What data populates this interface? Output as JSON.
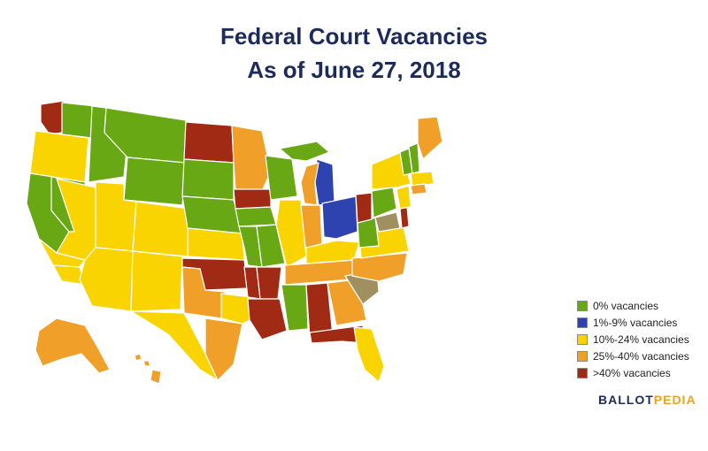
{
  "title": {
    "line1": "Federal Court Vacancies",
    "line2": "As of June 27, 2018"
  },
  "colors": {
    "green": "#67a814",
    "blue": "#2f43b0",
    "yellow": "#f9d400",
    "orange": "#f0a028",
    "red": "#a02a14",
    "olive": "#a09060",
    "border": "#ffffff"
  },
  "legend": [
    {
      "label": "0% vacancies",
      "color": "#67a814"
    },
    {
      "label": "1%-9% vacancies",
      "color": "#2f43b0"
    },
    {
      "label": "10%-24% vacancies",
      "color": "#f9d400"
    },
    {
      "label": "25%-40% vacancies",
      "color": "#f0a028"
    },
    {
      "label": ">40% vacancies",
      "color": "#a02a14"
    }
  ],
  "logo": {
    "part1": "BALLOT",
    "part2": "PEDIA"
  }
}
